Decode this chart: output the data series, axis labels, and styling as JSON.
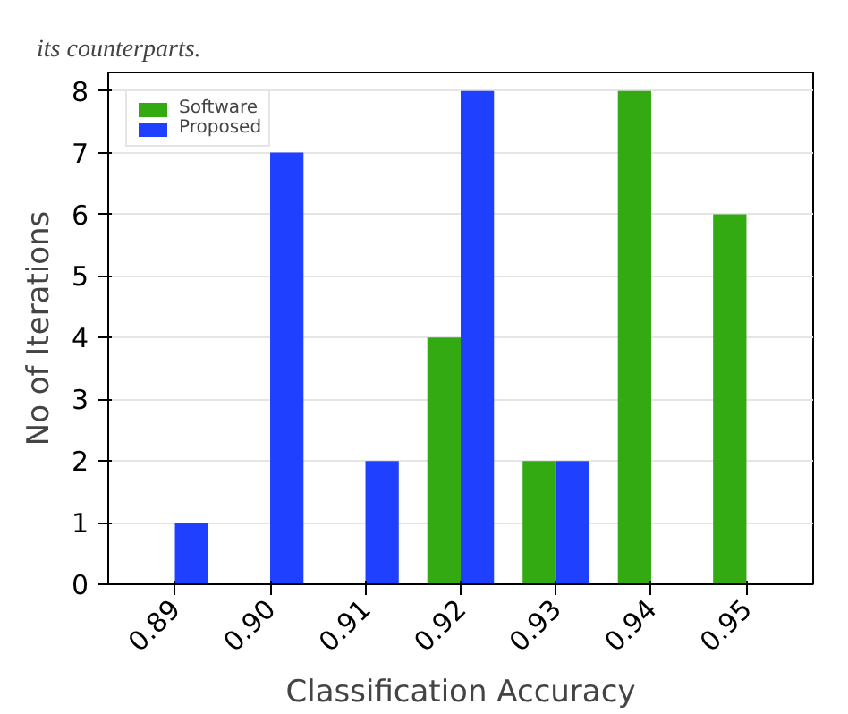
{
  "chart_data": {
    "type": "bar",
    "xlabel": "Classification Accuracy",
    "ylabel": "No of Iterations",
    "annotations": [
      "its counterparts."
    ],
    "categories": [
      "0.89",
      "0.90",
      "0.91",
      "0.92",
      "0.93",
      "0.94",
      "0.95"
    ],
    "series": [
      {
        "name": "Software",
        "color": "#33aa11",
        "values": [
          null,
          null,
          null,
          4,
          2,
          8,
          6
        ]
      },
      {
        "name": "Proposed",
        "color": "#2040ff",
        "values": [
          1,
          7,
          2,
          8,
          2,
          null,
          null
        ]
      }
    ],
    "ylim": [
      0,
      8.3
    ],
    "yticks": [
      0,
      1,
      2,
      3,
      4,
      5,
      6,
      7,
      8
    ],
    "grid": "y",
    "legend": "top left"
  }
}
